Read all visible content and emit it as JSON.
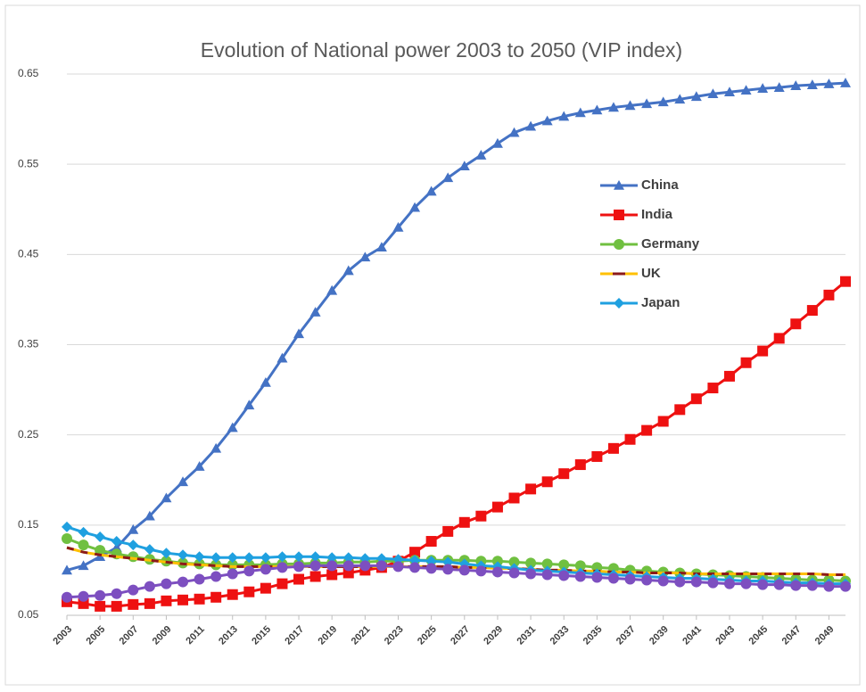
{
  "chart_data": {
    "type": "line",
    "title": "Evolution of National power 2003 to 2050 (VIP index)",
    "x": [
      2003,
      2004,
      2005,
      2006,
      2007,
      2008,
      2009,
      2010,
      2011,
      2012,
      2013,
      2014,
      2015,
      2016,
      2017,
      2018,
      2019,
      2020,
      2021,
      2022,
      2023,
      2024,
      2025,
      2026,
      2027,
      2028,
      2029,
      2030,
      2031,
      2032,
      2033,
      2034,
      2035,
      2036,
      2037,
      2038,
      2039,
      2040,
      2041,
      2042,
      2043,
      2044,
      2045,
      2046,
      2047,
      2048,
      2049,
      2050
    ],
    "xlim": [
      2003,
      2050
    ],
    "xticks": [
      2003,
      2005,
      2007,
      2009,
      2011,
      2013,
      2015,
      2017,
      2019,
      2021,
      2023,
      2025,
      2027,
      2029,
      2031,
      2033,
      2035,
      2037,
      2039,
      2041,
      2043,
      2045,
      2047,
      2049
    ],
    "ylim": [
      0.05,
      0.65
    ],
    "yticks": [
      0.05,
      0.15,
      0.25,
      0.35,
      0.45,
      0.55,
      0.65
    ],
    "grid": true,
    "legend": "right",
    "series": [
      {
        "name": "China",
        "color": "#4472c4",
        "marker": "triangle",
        "values": [
          0.1,
          0.105,
          0.115,
          0.125,
          0.145,
          0.16,
          0.18,
          0.198,
          0.215,
          0.235,
          0.258,
          0.283,
          0.308,
          0.335,
          0.362,
          0.386,
          0.41,
          0.432,
          0.447,
          0.458,
          0.48,
          0.502,
          0.52,
          0.535,
          0.548,
          0.56,
          0.573,
          0.585,
          0.592,
          0.598,
          0.603,
          0.607,
          0.61,
          0.613,
          0.615,
          0.617,
          0.619,
          0.622,
          0.625,
          0.628,
          0.63,
          0.632,
          0.634,
          0.635,
          0.637,
          0.638,
          0.639,
          0.64
        ]
      },
      {
        "name": "India",
        "color": "#ee1111",
        "marker": "square",
        "values": [
          0.065,
          0.063,
          0.06,
          0.06,
          0.062,
          0.063,
          0.066,
          0.067,
          0.068,
          0.07,
          0.073,
          0.076,
          0.08,
          0.085,
          0.09,
          0.093,
          0.095,
          0.097,
          0.1,
          0.103,
          0.11,
          0.12,
          0.132,
          0.143,
          0.153,
          0.16,
          0.17,
          0.18,
          0.19,
          0.198,
          0.207,
          0.217,
          0.226,
          0.235,
          0.245,
          0.255,
          0.265,
          0.278,
          0.29,
          0.302,
          0.315,
          0.33,
          0.343,
          0.357,
          0.373,
          0.388,
          0.405,
          0.42
        ]
      },
      {
        "name": "Germany",
        "color": "#70c040",
        "marker": "circle",
        "values": [
          0.135,
          0.128,
          0.122,
          0.118,
          0.115,
          0.112,
          0.11,
          0.108,
          0.107,
          0.106,
          0.106,
          0.106,
          0.106,
          0.107,
          0.107,
          0.108,
          0.108,
          0.109,
          0.109,
          0.11,
          0.11,
          0.111,
          0.111,
          0.111,
          0.111,
          0.11,
          0.11,
          0.109,
          0.108,
          0.107,
          0.106,
          0.105,
          0.103,
          0.102,
          0.1,
          0.099,
          0.098,
          0.097,
          0.096,
          0.095,
          0.094,
          0.093,
          0.092,
          0.091,
          0.09,
          0.089,
          0.089,
          0.088
        ]
      },
      {
        "name": "UK",
        "color": "#ffc000",
        "dash_color": "#8b1a1a",
        "marker": "none",
        "values": [
          0.125,
          0.12,
          0.117,
          0.115,
          0.113,
          0.111,
          0.109,
          0.107,
          0.106,
          0.105,
          0.104,
          0.104,
          0.104,
          0.104,
          0.104,
          0.104,
          0.104,
          0.104,
          0.104,
          0.104,
          0.104,
          0.104,
          0.104,
          0.104,
          0.103,
          0.103,
          0.102,
          0.102,
          0.101,
          0.1,
          0.1,
          0.099,
          0.099,
          0.098,
          0.098,
          0.097,
          0.097,
          0.097,
          0.096,
          0.096,
          0.096,
          0.096,
          0.096,
          0.096,
          0.096,
          0.096,
          0.095,
          0.095
        ]
      },
      {
        "name": "Japan",
        "color": "#1fa0e0",
        "marker": "diamond",
        "values": [
          0.148,
          0.142,
          0.137,
          0.132,
          0.128,
          0.123,
          0.119,
          0.117,
          0.115,
          0.114,
          0.114,
          0.114,
          0.114,
          0.115,
          0.115,
          0.115,
          0.114,
          0.114,
          0.113,
          0.113,
          0.112,
          0.111,
          0.11,
          0.109,
          0.107,
          0.105,
          0.104,
          0.102,
          0.1,
          0.099,
          0.098,
          0.097,
          0.096,
          0.095,
          0.094,
          0.093,
          0.092,
          0.091,
          0.091,
          0.09,
          0.089,
          0.088,
          0.088,
          0.087,
          0.086,
          0.086,
          0.085,
          0.085
        ]
      },
      {
        "color": "#7d4fc0",
        "marker": "circle",
        "values": [
          0.07,
          0.071,
          0.072,
          0.074,
          0.078,
          0.082,
          0.085,
          0.087,
          0.09,
          0.093,
          0.096,
          0.099,
          0.101,
          0.103,
          0.104,
          0.105,
          0.105,
          0.105,
          0.105,
          0.105,
          0.104,
          0.103,
          0.102,
          0.101,
          0.1,
          0.099,
          0.098,
          0.097,
          0.096,
          0.095,
          0.094,
          0.093,
          0.092,
          0.091,
          0.09,
          0.089,
          0.088,
          0.087,
          0.087,
          0.086,
          0.085,
          0.085,
          0.084,
          0.084,
          0.083,
          0.083,
          0.082,
          0.082
        ]
      }
    ]
  }
}
